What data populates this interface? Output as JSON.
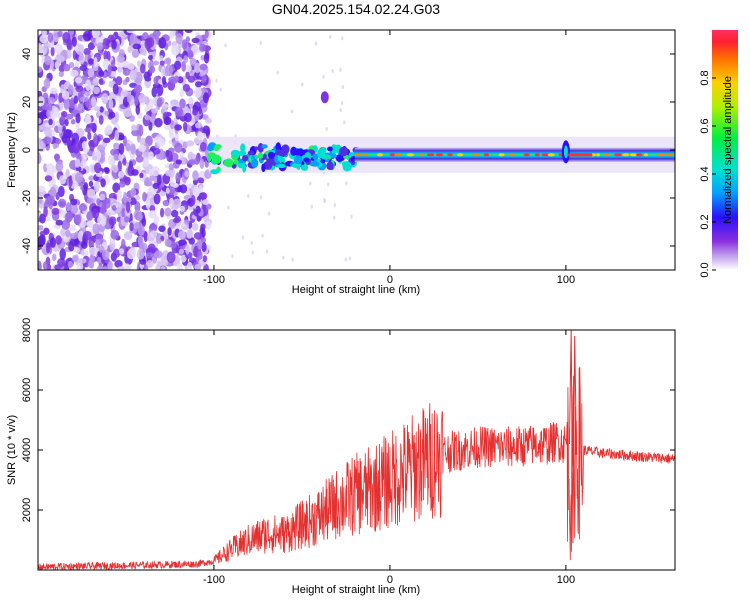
{
  "title": "GN04.2025.154.02.24.G03",
  "chart_data": [
    {
      "type": "heatmap",
      "xlabel": "Height of straight line (km)",
      "ylabel": "Frequency (Hz)",
      "xlim": [
        -200,
        162
      ],
      "ylim": [
        -50,
        50
      ],
      "x_ticks": [
        -100,
        0,
        100
      ],
      "y_ticks": [
        -40,
        -20,
        0,
        20,
        40
      ],
      "colorbar": {
        "label": "Normalized spectral amplitude",
        "range": [
          0,
          1
        ],
        "ticks": [
          0.0,
          0.2,
          0.4,
          0.6,
          0.8
        ],
        "tick_labels": [
          "0.0",
          "0.2",
          "0.4",
          "0.6",
          "0.8"
        ]
      },
      "features": {
        "noise_region_x": [
          -200,
          -103
        ],
        "signal_center_freq_hz": -2,
        "signal_band_halfwidth_hz": 3,
        "strong_peak_x": 100
      }
    },
    {
      "type": "line",
      "xlabel": "Height of straight line (km)",
      "ylabel": "SNR (10 * v/v)",
      "xlim": [
        -200,
        162
      ],
      "ylim": [
        0,
        8000
      ],
      "x_ticks": [
        -100,
        0,
        100
      ],
      "y_ticks": [
        2000,
        4000,
        6000,
        8000
      ],
      "color": "#e53030",
      "series": [
        {
          "name": "SNR",
          "x": [
            -200,
            -150,
            -110,
            -100,
            -90,
            -80,
            -70,
            -60,
            -50,
            -40,
            -30,
            -20,
            -10,
            0,
            10,
            20,
            30,
            40,
            50,
            60,
            70,
            80,
            90,
            95,
            100,
            103,
            105,
            108,
            110,
            120,
            130,
            140,
            150,
            162
          ],
          "values": [
            100,
            150,
            200,
            300,
            700,
            1000,
            1200,
            1200,
            1500,
            1800,
            2200,
            2500,
            2700,
            3000,
            3300,
            3600,
            3900,
            4000,
            4100,
            4100,
            4100,
            4150,
            4200,
            4300,
            4200,
            3000,
            4000,
            4000,
            4000,
            3900,
            3850,
            3800,
            3750,
            3700
          ]
        }
      ]
    }
  ]
}
